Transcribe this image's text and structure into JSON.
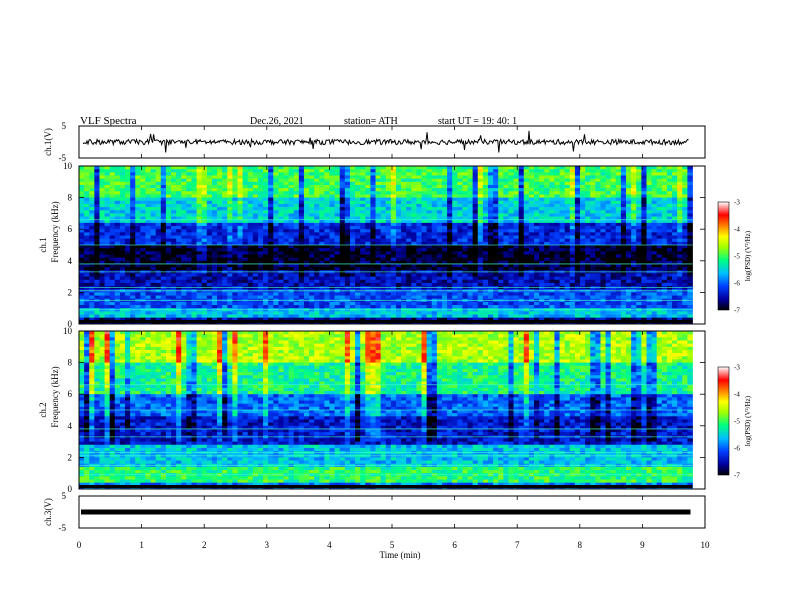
{
  "header": {
    "title": "VLF  Spectra",
    "date": "Dec.26, 2021",
    "station": "station= ATH",
    "start": "start  UT  =    19: 40: 1"
  },
  "panels": {
    "ch1_voltage": {
      "ylabel": "ch.1(V)",
      "yticks": [
        "5",
        "-5"
      ]
    },
    "ch1_spectrogram": {
      "ylabel_top": "ch.1",
      "ylabel": "Frequency (kHz)",
      "yticks": [
        "10",
        "8",
        "6",
        "4",
        "2",
        "0"
      ]
    },
    "ch2_spectrogram": {
      "ylabel_top": "ch.2",
      "ylabel": "Frequency (kHz)",
      "yticks": [
        "10",
        "8",
        "6",
        "4",
        "2",
        "0"
      ]
    },
    "ch3_voltage": {
      "ylabel": "ch.3(V)",
      "yticks": [
        "5",
        "-5"
      ]
    }
  },
  "colorbar": {
    "label": "log(PSD) (V²/Hz)",
    "ticks": [
      "-3",
      "-4",
      "-5",
      "-6",
      "-7"
    ],
    "colors": [
      "#000000",
      "#0000a0",
      "#0040ff",
      "#00c0ff",
      "#00ff80",
      "#a0ff00",
      "#ffff00",
      "#ff8000",
      "#ff0000",
      "#ffffff"
    ]
  },
  "xaxis": {
    "label": "Time  (min)",
    "ticks": [
      "0",
      "1",
      "2",
      "3",
      "4",
      "5",
      "6",
      "7",
      "8",
      "9",
      "10"
    ]
  },
  "chart_data": {
    "type": "heatmap",
    "description_source": "VLF spectrogram, two channels",
    "x": {
      "unit": "min",
      "range": [
        0,
        10
      ],
      "data_end": 9.8
    },
    "y": {
      "unit": "kHz",
      "range": [
        0,
        10
      ]
    },
    "z": {
      "unit": "log(PSD)",
      "range": [
        -7,
        -3
      ]
    },
    "ch1_voltage": {
      "range": [
        -5,
        5
      ],
      "baseline": 0
    },
    "ch3_voltage": {
      "range": [
        -5,
        5
      ],
      "baseline": 0
    },
    "ch1_bands": [
      {
        "from": 0,
        "to": 0.4,
        "level": -6.6
      },
      {
        "from": 0.4,
        "to": 1.0,
        "level": -5.6
      },
      {
        "from": 1.0,
        "to": 2.2,
        "level": -6.1
      },
      {
        "from": 2.2,
        "to": 3.5,
        "level": -6.5
      },
      {
        "from": 3.5,
        "to": 5.0,
        "level": -6.9
      },
      {
        "from": 5.0,
        "to": 6.5,
        "level": -6.3
      },
      {
        "from": 6.5,
        "to": 8.0,
        "level": -5.5
      },
      {
        "from": 8.0,
        "to": 10.0,
        "level": -5.0
      }
    ],
    "ch2_bands": [
      {
        "from": 0,
        "to": 0.5,
        "level": -5.9
      },
      {
        "from": 0.5,
        "to": 1.5,
        "level": -5.1
      },
      {
        "from": 1.5,
        "to": 2.8,
        "level": -5.6
      },
      {
        "from": 2.8,
        "to": 4.6,
        "level": -6.4
      },
      {
        "from": 4.6,
        "to": 6.0,
        "level": -6.0
      },
      {
        "from": 6.0,
        "to": 8.0,
        "level": -5.2
      },
      {
        "from": 8.0,
        "to": 10.0,
        "level": -4.6
      }
    ]
  }
}
